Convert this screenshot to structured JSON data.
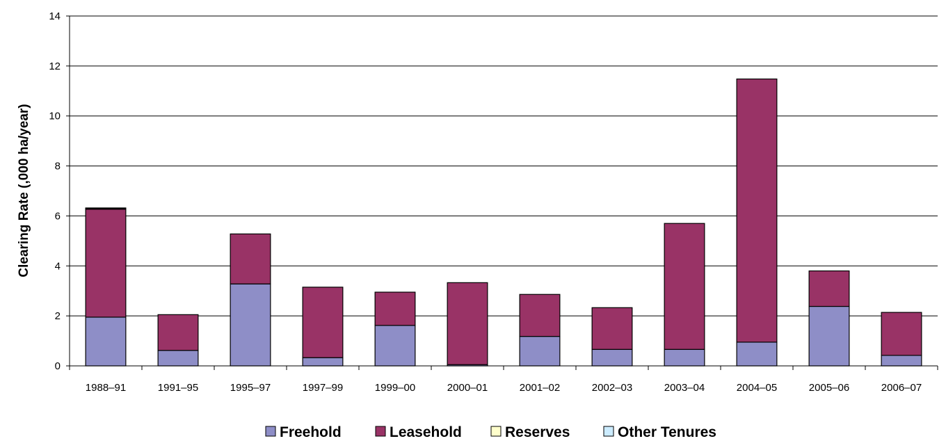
{
  "chart_data": {
    "type": "bar",
    "stacked": true,
    "title": "",
    "xlabel": "",
    "ylabel": "Clearing Rate (,000 ha/year)",
    "ylim": [
      0,
      14
    ],
    "yticks": [
      0,
      2,
      4,
      6,
      8,
      10,
      12,
      14
    ],
    "grid": true,
    "legend_position": "bottom",
    "categories": [
      "1988–91",
      "1991–95",
      "1995–97",
      "1997–99",
      "1999–00",
      "2000–01",
      "2001–02",
      "2002–03",
      "2003–04",
      "2004–05",
      "2005–06",
      "2006–07"
    ],
    "series": [
      {
        "name": "Freehold",
        "color": "#8E8EC7",
        "values": [
          1.95,
          0.62,
          3.28,
          0.33,
          1.62,
          0.05,
          1.18,
          0.66,
          0.66,
          0.95,
          2.38,
          0.42
        ]
      },
      {
        "name": "Leasehold",
        "color": "#993366",
        "values": [
          4.32,
          1.43,
          2.0,
          2.82,
          1.33,
          3.28,
          1.68,
          1.67,
          5.04,
          10.53,
          1.42,
          1.72
        ]
      },
      {
        "name": "Reserves",
        "color": "#FFFFCC",
        "values": [
          0.03,
          0,
          0,
          0,
          0,
          0,
          0,
          0,
          0,
          0,
          0,
          0
        ]
      },
      {
        "name": "Other Tenures",
        "color": "#CCECFF",
        "values": [
          0.02,
          0,
          0,
          0,
          0,
          0,
          0,
          0,
          0,
          0,
          0,
          0
        ]
      }
    ]
  }
}
